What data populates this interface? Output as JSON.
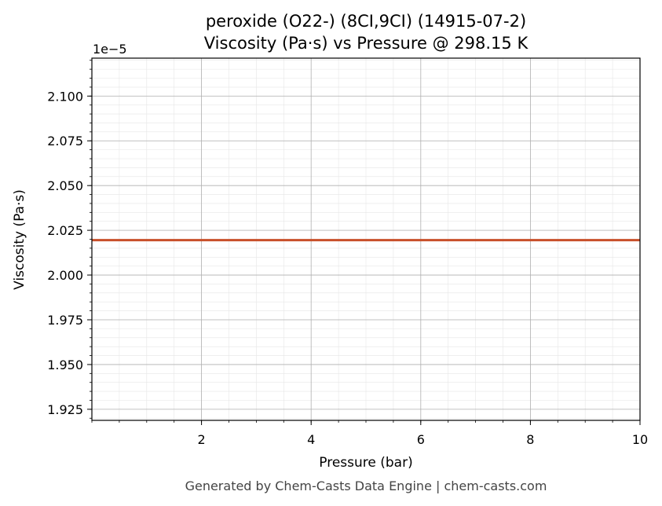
{
  "chart_data": {
    "type": "line",
    "title_line1": "peroxide (O22-) (8CI,9CI) (14915-07-2)",
    "title_line2": "Viscosity (Pa·s) vs Pressure @ 298.15 K",
    "xlabel": "Pressure (bar)",
    "ylabel": "Viscosity (Pa·s)",
    "y_offset_label": "1e−5",
    "xlim": [
      0.0,
      10.0
    ],
    "ylim": [
      1.9188,
      2.1212
    ],
    "y_scale_exponent": -5,
    "x_ticks": [
      2,
      4,
      6,
      8,
      10
    ],
    "x_tick_labels": [
      "2",
      "4",
      "6",
      "8",
      "10"
    ],
    "y_ticks": [
      1.925,
      1.95,
      1.975,
      2.0,
      2.025,
      2.05,
      2.075,
      2.1
    ],
    "y_tick_labels": [
      "1.925",
      "1.950",
      "1.975",
      "2.000",
      "2.025",
      "2.050",
      "2.075",
      "2.100"
    ],
    "grid": true,
    "series": [
      {
        "color": "#c8502a",
        "x": [
          0.0,
          1,
          2,
          3,
          4,
          5,
          6,
          7,
          8,
          9,
          10
        ],
        "y": [
          2.0195,
          2.0195,
          2.0195,
          2.0195,
          2.0195,
          2.0195,
          2.0195,
          2.0195,
          2.0195,
          2.0195,
          2.0195
        ]
      }
    ]
  },
  "footer": "Generated by Chem-Casts Data Engine | chem-casts.com"
}
